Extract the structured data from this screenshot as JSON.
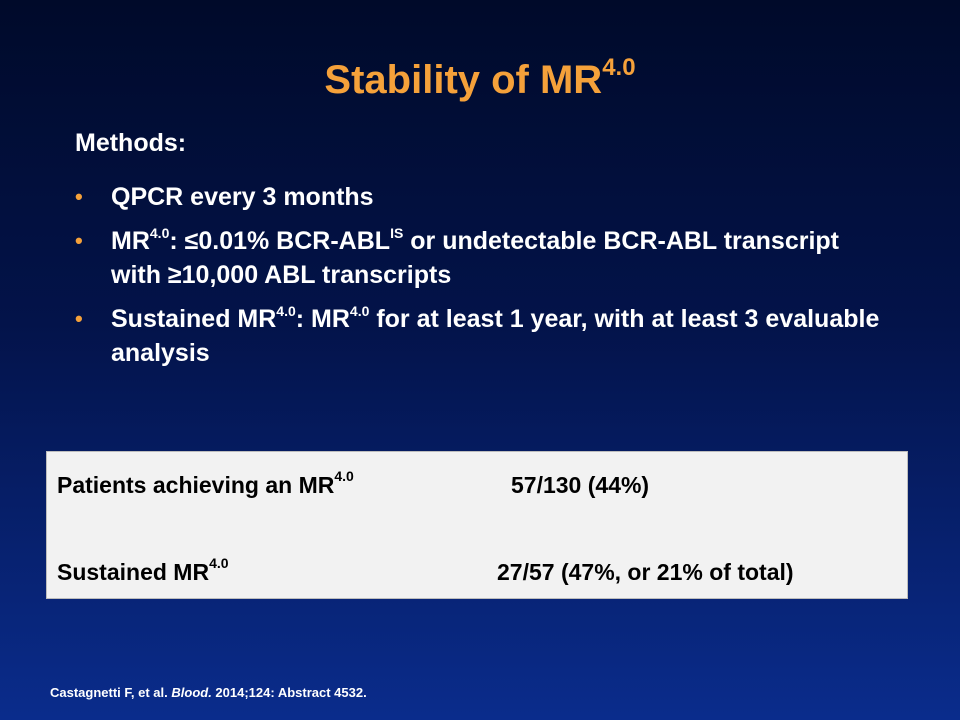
{
  "title": {
    "main": "Stability of MR",
    "sup": "4.0"
  },
  "methods_label": "Methods:",
  "bullets": {
    "b1": {
      "text": "QPCR every 3 months"
    },
    "b2": {
      "p1": "MR",
      "s1": "4.0",
      "p2": ": ≤0.01% BCR-ABL",
      "s2": "IS",
      "p3": " or undetectable BCR-ABL  transcript with ≥10,000 ABL transcripts"
    },
    "b3": {
      "p1": "Sustained  MR",
      "s1": "4.0",
      "p2": ": MR",
      "s2": "4.0",
      "p3": " for at least 1 year, with at least 3 evaluable analysis"
    }
  },
  "table": {
    "rows": [
      {
        "label": "Patients achieving an MR",
        "sup": "4.0",
        "value": "57/130 (44%)"
      },
      {
        "label": "Sustained MR",
        "sup": "4.0",
        "value": "27/57 (47%, or 21% of total)"
      }
    ]
  },
  "citation": {
    "authors": "Castagnetti F, et al. ",
    "journal": "Blood.",
    "details": " 2014;124: Abstract 4532."
  },
  "colors": {
    "accent": "#f5a13a",
    "background_top": "#000a2a",
    "background_bottom": "#0a2c8c",
    "table_bg": "#f2f2f2"
  }
}
